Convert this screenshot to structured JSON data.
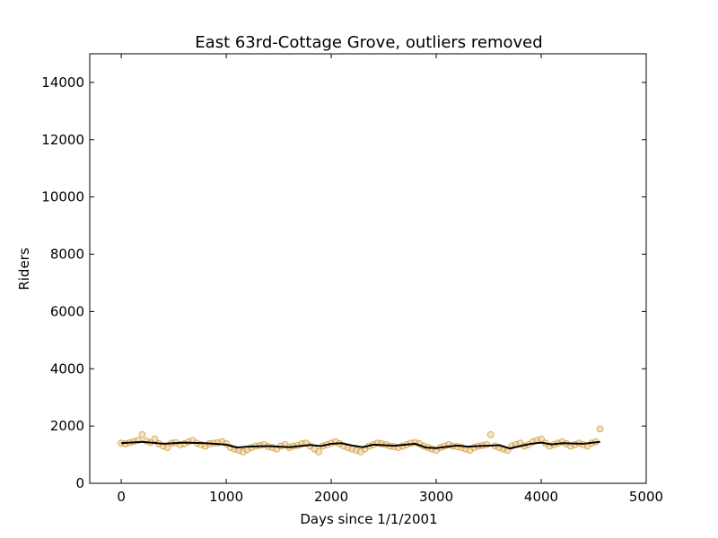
{
  "chart_data": {
    "type": "scatter",
    "title": "East 63rd-Cottage Grove, outliers removed",
    "xlabel": "Days since 1/1/2001",
    "ylabel": "Riders",
    "xlim": [
      -300,
      5000
    ],
    "ylim": [
      0,
      15000
    ],
    "xticks": [
      0,
      1000,
      2000,
      3000,
      4000,
      5000
    ],
    "yticks": [
      0,
      2000,
      4000,
      6000,
      8000,
      10000,
      12000,
      14000
    ],
    "grid": false,
    "legend": "none",
    "colors": {
      "points_fill": "#f5c58a",
      "points_edge": "#b8860b",
      "trend": "#000000"
    },
    "series": [
      {
        "kind": "scatter",
        "x": [
          0,
          40,
          80,
          120,
          160,
          200,
          240,
          280,
          320,
          360,
          400,
          440,
          480,
          520,
          560,
          600,
          640,
          680,
          720,
          760,
          800,
          840,
          880,
          920,
          960,
          1000,
          1040,
          1080,
          1120,
          1160,
          1200,
          1240,
          1280,
          1320,
          1360,
          1400,
          1440,
          1480,
          1520,
          1560,
          1600,
          1640,
          1680,
          1720,
          1760,
          1800,
          1840,
          1880,
          1920,
          1960,
          2000,
          2040,
          2080,
          2120,
          2160,
          2200,
          2240,
          2280,
          2320,
          2360,
          2400,
          2440,
          2480,
          2520,
          2560,
          2600,
          2640,
          2680,
          2720,
          2760,
          2800,
          2840,
          2880,
          2920,
          2960,
          3000,
          3040,
          3080,
          3120,
          3160,
          3200,
          3240,
          3280,
          3320,
          3360,
          3400,
          3440,
          3480,
          3520,
          3560,
          3600,
          3640,
          3680,
          3720,
          3760,
          3800,
          3840,
          3880,
          3920,
          3960,
          4000,
          4040,
          4080,
          4120,
          4160,
          4200,
          4240,
          4280,
          4320,
          4360,
          4400,
          4440,
          4480,
          4520,
          4560
        ],
        "y": [
          1400,
          1380,
          1420,
          1460,
          1500,
          1700,
          1480,
          1420,
          1550,
          1380,
          1300,
          1250,
          1400,
          1420,
          1350,
          1380,
          1450,
          1500,
          1400,
          1350,
          1300,
          1380,
          1400,
          1420,
          1450,
          1380,
          1250,
          1200,
          1150,
          1100,
          1180,
          1250,
          1300,
          1320,
          1350,
          1280,
          1250,
          1200,
          1300,
          1350,
          1250,
          1300,
          1320,
          1380,
          1400,
          1300,
          1200,
          1100,
          1300,
          1350,
          1400,
          1450,
          1380,
          1300,
          1250,
          1200,
          1150,
          1100,
          1200,
          1300,
          1350,
          1400,
          1380,
          1350,
          1300,
          1280,
          1250,
          1300,
          1350,
          1400,
          1420,
          1380,
          1300,
          1250,
          1200,
          1150,
          1250,
          1300,
          1350,
          1300,
          1280,
          1250,
          1200,
          1150,
          1250,
          1300,
          1320,
          1350,
          1700,
          1300,
          1250,
          1200,
          1150,
          1300,
          1350,
          1400,
          1300,
          1350,
          1450,
          1500,
          1550,
          1400,
          1300,
          1350,
          1400,
          1450,
          1380,
          1300,
          1350,
          1400,
          1350,
          1300,
          1400,
          1450,
          1900
        ]
      },
      {
        "kind": "line",
        "x": [
          0,
          200,
          400,
          600,
          800,
          1000,
          1100,
          1200,
          1400,
          1600,
          1800,
          1900,
          2000,
          2100,
          2200,
          2300,
          2400,
          2600,
          2800,
          2900,
          3000,
          3200,
          3300,
          3400,
          3600,
          3700,
          3800,
          3900,
          4000,
          4100,
          4200,
          4400,
          4560
        ],
        "y": [
          1400,
          1450,
          1380,
          1420,
          1400,
          1350,
          1250,
          1280,
          1300,
          1260,
          1340,
          1300,
          1380,
          1400,
          1320,
          1260,
          1350,
          1310,
          1380,
          1250,
          1230,
          1320,
          1280,
          1300,
          1330,
          1220,
          1300,
          1380,
          1420,
          1360,
          1400,
          1380,
          1450
        ]
      }
    ]
  }
}
